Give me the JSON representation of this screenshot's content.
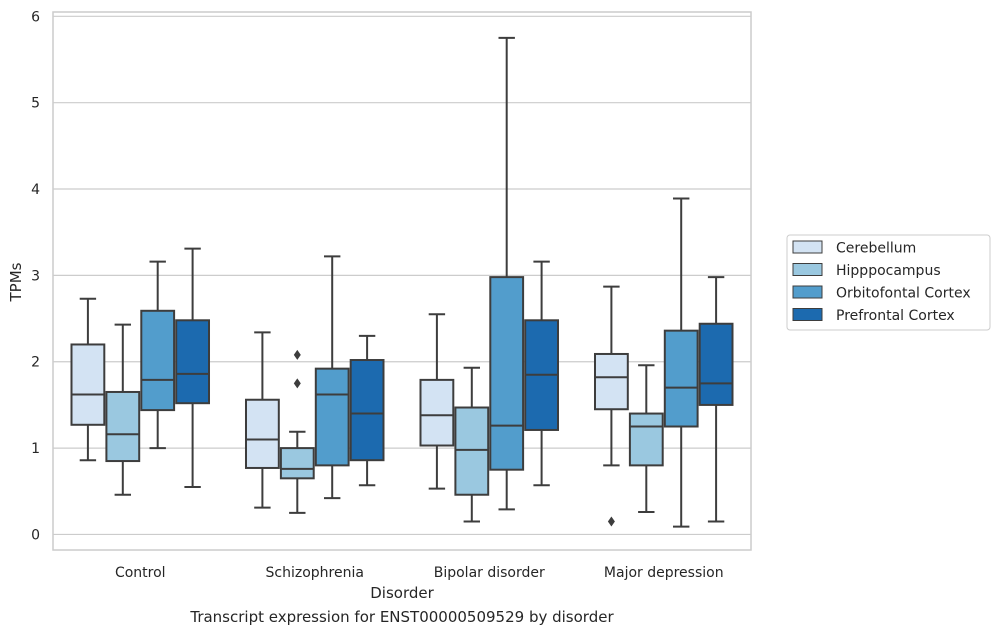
{
  "caption": "Transcript expression for ENST00000509529 by disorder",
  "chart_data": {
    "type": "boxplot",
    "xlabel": "Disorder",
    "ylabel": "TPMs",
    "ylim": [
      -0.18,
      6.05
    ],
    "yticks": [
      0,
      1,
      2,
      3,
      4,
      5,
      6
    ],
    "grid": "horizontal",
    "legend_position": "right",
    "categories": [
      "Control",
      "Schizophrenia",
      "Bipolar disorder",
      "Major depression"
    ],
    "series": [
      {
        "name": "Cerebellum",
        "color": "#d3e3f3",
        "boxes": [
          {
            "whislo": 0.86,
            "q1": 1.27,
            "med": 1.62,
            "q3": 2.2,
            "whishi": 2.73,
            "fliers": []
          },
          {
            "whislo": 0.31,
            "q1": 0.77,
            "med": 1.1,
            "q3": 1.56,
            "whishi": 2.34,
            "fliers": []
          },
          {
            "whislo": 0.53,
            "q1": 1.03,
            "med": 1.38,
            "q3": 1.79,
            "whishi": 2.55,
            "fliers": []
          },
          {
            "whislo": 0.8,
            "q1": 1.45,
            "med": 1.82,
            "q3": 2.09,
            "whishi": 2.87,
            "fliers": [
              0.15
            ]
          }
        ]
      },
      {
        "name": "Hipppocampus",
        "color": "#9ac8e0",
        "boxes": [
          {
            "whislo": 0.46,
            "q1": 0.85,
            "med": 1.16,
            "q3": 1.65,
            "whishi": 2.43,
            "fliers": []
          },
          {
            "whislo": 0.25,
            "q1": 0.65,
            "med": 0.76,
            "q3": 1.0,
            "whishi": 1.19,
            "fliers": [
              1.75,
              2.08
            ]
          },
          {
            "whislo": 0.15,
            "q1": 0.46,
            "med": 0.98,
            "q3": 1.47,
            "whishi": 1.93,
            "fliers": []
          },
          {
            "whislo": 0.26,
            "q1": 0.8,
            "med": 1.25,
            "q3": 1.4,
            "whishi": 1.96,
            "fliers": []
          }
        ]
      },
      {
        "name": "Orbitofontal Cortex",
        "color": "#529dcc",
        "boxes": [
          {
            "whislo": 1.0,
            "q1": 1.44,
            "med": 1.79,
            "q3": 2.59,
            "whishi": 3.16,
            "fliers": []
          },
          {
            "whislo": 0.42,
            "q1": 0.8,
            "med": 1.62,
            "q3": 1.92,
            "whishi": 3.22,
            "fliers": []
          },
          {
            "whislo": 0.29,
            "q1": 0.75,
            "med": 1.26,
            "q3": 2.98,
            "whishi": 5.75,
            "fliers": []
          },
          {
            "whislo": 0.09,
            "q1": 1.25,
            "med": 1.7,
            "q3": 2.36,
            "whishi": 3.89,
            "fliers": []
          }
        ]
      },
      {
        "name": "Prefrontal Cortex",
        "color": "#1c6aaf",
        "boxes": [
          {
            "whislo": 0.55,
            "q1": 1.52,
            "med": 1.86,
            "q3": 2.48,
            "whishi": 3.31,
            "fliers": []
          },
          {
            "whislo": 0.57,
            "q1": 0.86,
            "med": 1.4,
            "q3": 2.02,
            "whishi": 2.3,
            "fliers": []
          },
          {
            "whislo": 0.57,
            "q1": 1.21,
            "med": 1.85,
            "q3": 2.48,
            "whishi": 3.16,
            "fliers": []
          },
          {
            "whislo": 0.15,
            "q1": 1.5,
            "med": 1.75,
            "q3": 2.44,
            "whishi": 2.98,
            "fliers": []
          }
        ]
      }
    ]
  }
}
